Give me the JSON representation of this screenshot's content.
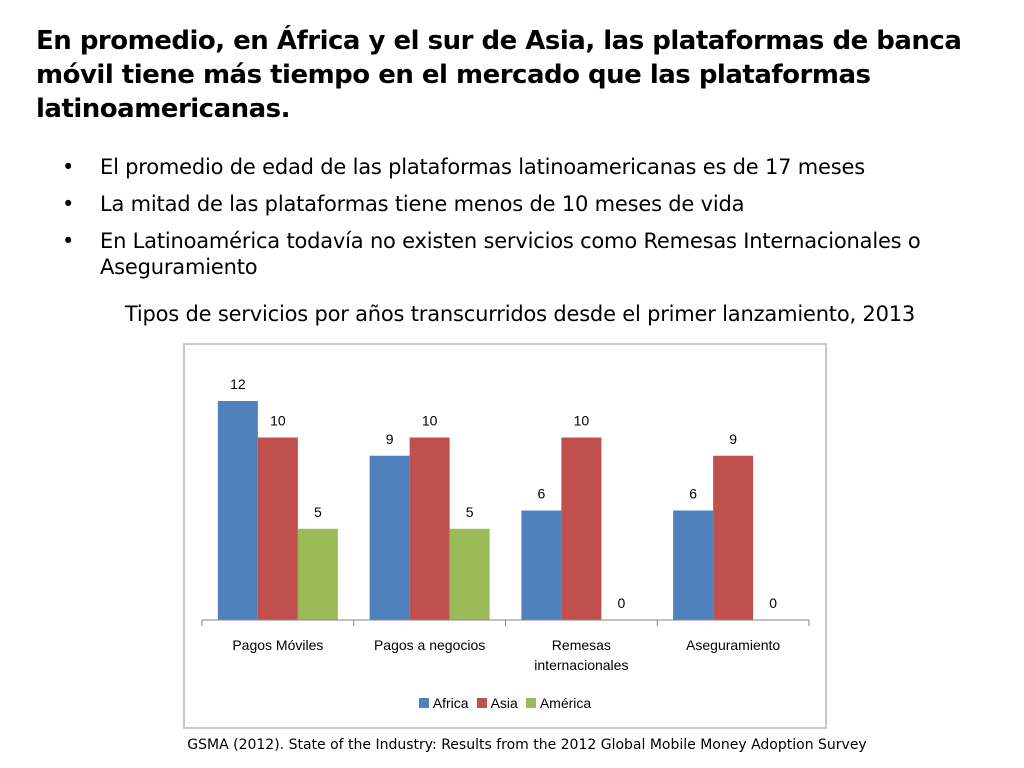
{
  "slide": {
    "title": "En promedio, en África y el sur de Asia, las plataformas de banca móvil tiene más tiempo en el mercado que las plataformas latinoamericanas.",
    "bullets": [
      "El promedio de edad de las plataformas latinoamericanas es de 17 meses",
      "La mitad de las plataformas tiene menos de 10 meses de vida",
      "En Latinoamérica todavía no existen servicios como Remesas Internacionales o Aseguramiento"
    ],
    "bullet_symbol": "•",
    "source": "GSMA (2012). State of the Industry: Results from the 2012 Global Mobile Money Adoption Survey"
  },
  "chart_data": {
    "type": "bar",
    "title": "Tipos de servicios por años transcurridos desde el primer lanzamiento, 2013",
    "categories": [
      [
        "Pagos Móviles"
      ],
      [
        "Pagos a negocios"
      ],
      [
        "Remesas",
        "internacionales"
      ],
      [
        "Aseguramiento"
      ]
    ],
    "series": [
      {
        "name": "Africa",
        "color": "#4F81BD",
        "values": [
          12,
          9,
          6,
          6
        ]
      },
      {
        "name": "Asia",
        "color": "#C0504D",
        "values": [
          10,
          10,
          10,
          9
        ]
      },
      {
        "name": "América",
        "color": "#9BBB59",
        "values": [
          5,
          5,
          0,
          0
        ]
      }
    ],
    "data_labels": [
      [
        "12",
        "9",
        "6",
        "6"
      ],
      [
        "10",
        "10",
        "10",
        "9"
      ],
      [
        "5",
        "5",
        "0",
        "0"
      ]
    ],
    "ylim": [
      0,
      12
    ],
    "grid": false,
    "legend": "bottom",
    "show_y_axis": false
  }
}
